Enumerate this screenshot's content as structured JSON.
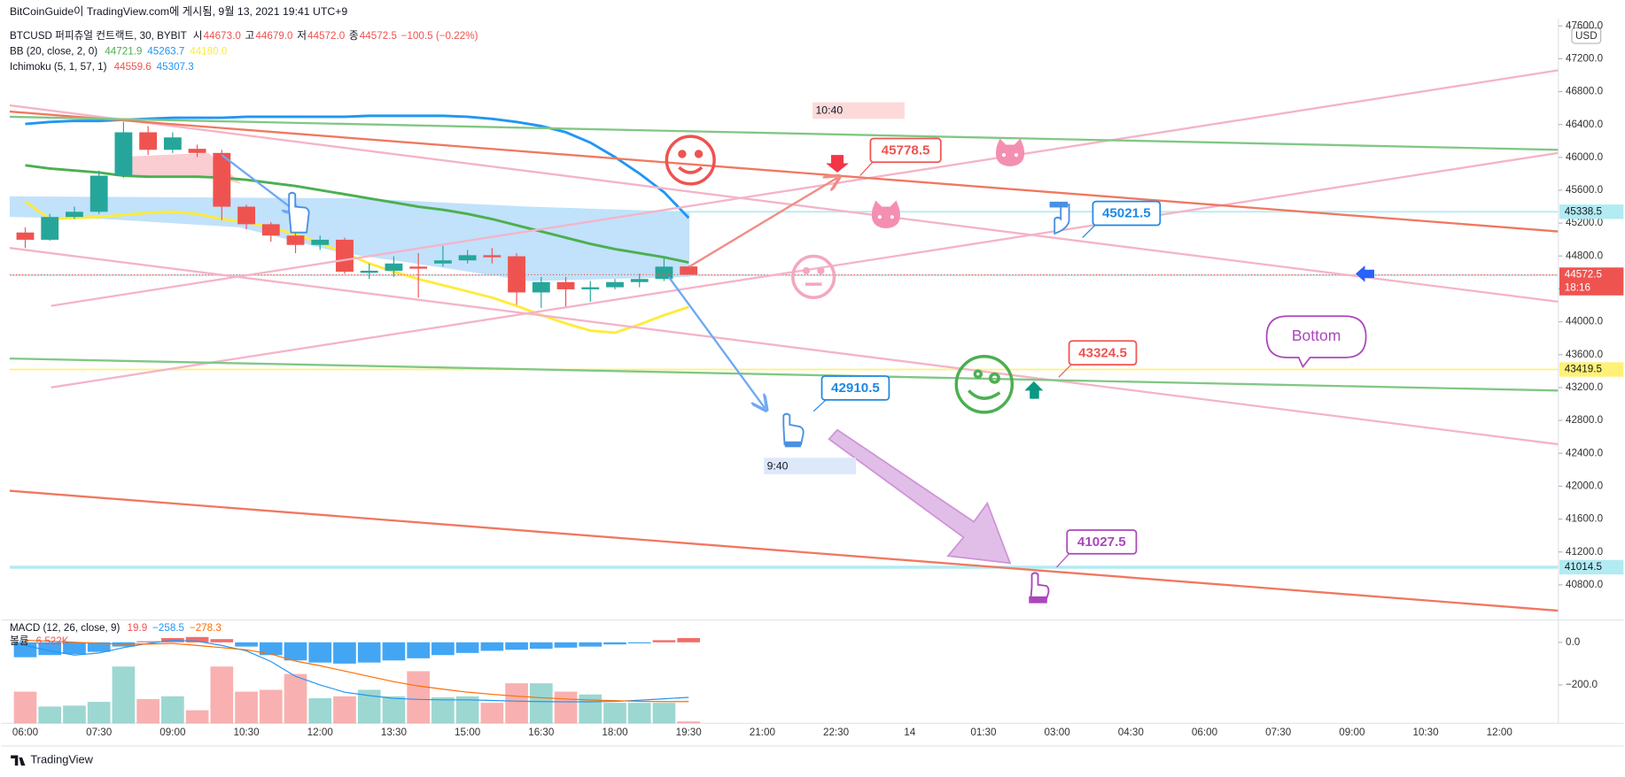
{
  "chart_data": {
    "type": "candlestick",
    "header": "BitCoinGuide이 TradingView.com에 게시됨, 9월 13, 2021 19:41 UTC+9",
    "legend": {
      "symbol": "BTCUSD 퍼피츄얼 컨트랙트, 30, BYBIT",
      "items": [
        [
          "시",
          "44673.0"
        ],
        [
          "고",
          "44679.0"
        ],
        [
          "저",
          "44572.0"
        ],
        [
          "종",
          "44572.5"
        ]
      ],
      "change": "−100.5 (−0.22%)",
      "color": "#ef5350"
    },
    "currency": "USD",
    "categories": [
      "06:00",
      "06:30",
      "07:00",
      "07:30",
      "08:00",
      "08:30",
      "09:00",
      "09:30",
      "10:00",
      "10:30",
      "11:00",
      "11:30",
      "12:00",
      "12:30",
      "13:00",
      "13:30",
      "14:00",
      "14:30",
      "15:00",
      "15:30",
      "16:00",
      "16:30",
      "17:00",
      "17:30",
      "18:00",
      "18:30",
      "19:00",
      "19:30"
    ],
    "open": [
      45086,
      44998,
      45275,
      45338,
      45777,
      46305,
      46092,
      46104,
      46054,
      45400,
      45187,
      45049,
      44935,
      44998,
      44596,
      44621,
      44671,
      44709,
      44747,
      44810,
      44797,
      44357,
      44483,
      44395,
      44420,
      44483,
      44521,
      44673
    ],
    "high": [
      45149,
      45312,
      45400,
      45840,
      46431,
      46381,
      46305,
      46155,
      46092,
      45425,
      45212,
      45149,
      45049,
      45023,
      44709,
      44797,
      44835,
      44923,
      44873,
      44898,
      44835,
      44546,
      44546,
      44496,
      44521,
      44584,
      44772,
      44679
    ],
    "low": [
      44898,
      44986,
      45250,
      45312,
      45752,
      46029,
      46054,
      46004,
      45237,
      45124,
      44973,
      44835,
      44873,
      44584,
      44521,
      44546,
      44294,
      44671,
      44709,
      44709,
      44206,
      44169,
      44169,
      44244,
      44395,
      44420,
      44496,
      44572
    ],
    "close": [
      44998,
      45275,
      45338,
      45777,
      46305,
      46092,
      46243,
      46054,
      45400,
      45187,
      45049,
      44935,
      44998,
      44609,
      44621,
      44709,
      44646,
      44747,
      44810,
      44785,
      44357,
      44483,
      44395,
      44420,
      44483,
      44521,
      44671,
      44572.5
    ],
    "up_color": "#26a69a",
    "down_color": "#ef5350",
    "ylim": [
      40373,
      47663
    ],
    "yticks": [
      {
        "value": 40800,
        "label": "40800.0"
      },
      {
        "value": 41200,
        "label": "41200.0"
      },
      {
        "value": 41600,
        "label": "41600.0"
      },
      {
        "value": 42000,
        "label": "42000.0"
      },
      {
        "value": 42400,
        "label": "42400.0"
      },
      {
        "value": 42800,
        "label": "42800.0"
      },
      {
        "value": 43200,
        "label": "43200.0"
      },
      {
        "value": 43600,
        "label": "43600.0"
      },
      {
        "value": 44000,
        "label": "44000.0"
      },
      {
        "value": 44400,
        "label": "44400.0"
      },
      {
        "value": 44800,
        "label": "44800.0"
      },
      {
        "value": 45200,
        "label": "45200.0"
      },
      {
        "value": 45600,
        "label": "45600.0"
      },
      {
        "value": 46000,
        "label": "46000.0"
      },
      {
        "value": 46400,
        "label": "46400.0"
      },
      {
        "value": 46800,
        "label": "46800.0"
      },
      {
        "value": 47200,
        "label": "47200.0"
      },
      {
        "value": 47600,
        "label": "47600.0"
      }
    ],
    "grid": false,
    "xticks": [
      "06:00",
      "07:30",
      "09:00",
      "10:30",
      "12:00",
      "13:30",
      "15:00",
      "16:30",
      "18:00",
      "19:30",
      "21:00",
      "22:30",
      "14",
      "01:30",
      "03:00",
      "04:30",
      "06:00",
      "07:30",
      "09:00",
      "10:30",
      "12:00"
    ],
    "bb": {
      "label": "BB (20, close, 2, 0)",
      "series": [
        {
          "color": "#4caf50",
          "legend_value": "44721.9",
          "values": [
            45903,
            45865,
            45840,
            45815,
            45777,
            45765,
            45765,
            45765,
            45752,
            45727,
            45690,
            45652,
            45602,
            45551,
            45501,
            45451,
            45400,
            45363,
            45312,
            45250,
            45174,
            45099,
            45023,
            44948,
            44885,
            44835,
            44785,
            44721.9
          ]
        },
        {
          "color": "#2196f3",
          "legend_value": "45263.7",
          "values": [
            46406,
            46431,
            46444,
            46444,
            46456,
            46469,
            46481,
            46481,
            46481,
            46494,
            46494,
            46494,
            46494,
            46494,
            46506,
            46506,
            46506,
            46506,
            46494,
            46469,
            46431,
            46381,
            46305,
            46180,
            46004,
            45803,
            45576,
            45263.7
          ]
        },
        {
          "color": "#ffeb3b",
          "legend_value": "44180.0",
          "values": [
            45463,
            45250,
            45262,
            45275,
            45300,
            45325,
            45338,
            45312,
            45250,
            45212,
            45149,
            45061,
            44961,
            44835,
            44709,
            44609,
            44521,
            44445,
            44370,
            44294,
            44194,
            44081,
            43980,
            43892,
            43867,
            43968,
            44081,
            44180.0
          ]
        }
      ]
    },
    "ichimoku": {
      "label": "Ichimoku (5, 1, 57, 1)",
      "values": [
        {
          "text": "44559.6",
          "color": "#ef5350"
        },
        {
          "text": "45307.3",
          "color": "#2196f3"
        }
      ]
    },
    "price_lines": [
      {
        "value": 45338.5,
        "color": "#b2ebf2",
        "text_color": "#131722"
      },
      {
        "value": 44564.5,
        "color": "#b2ebf2",
        "text_color": "#131722"
      },
      {
        "value": 43419.5,
        "color": "#fff176",
        "text_color": "#131722"
      },
      {
        "value": 41014.5,
        "color": "#b2ebf2",
        "text_color": "#131722"
      }
    ],
    "last_price": {
      "value": 44572.5,
      "countdown": "18:16",
      "color": "#ef5350"
    },
    "annotations": [
      "10:40",
      "45778.5",
      "45021.5",
      "43324.5",
      "42910.5",
      "9:40",
      "41027.5",
      "Bottom"
    ],
    "macd": {
      "label": "MACD (12, 26, close, 9)",
      "legend_values": [
        {
          "text": "19.9",
          "color": "#ef5350"
        },
        {
          "text": "−258.5",
          "color": "#2196f3"
        },
        {
          "text": "−278.3",
          "color": "#ff6d00"
        }
      ],
      "ylim": [
        -380,
        105
      ],
      "yticks": [
        {
          "value": 0,
          "label": "0.0"
        },
        {
          "value": -200,
          "label": "−200.0"
        }
      ],
      "hist": [
        -70,
        -60,
        -55,
        -45,
        -20,
        5,
        20,
        25,
        15,
        -20,
        -60,
        -85,
        -95,
        -100,
        -95,
        -85,
        -75,
        -60,
        -50,
        -40,
        -35,
        -30,
        -25,
        -20,
        -10,
        -5,
        10,
        19.9
      ],
      "macd": [
        -15,
        -40,
        -60,
        -50,
        -25,
        -5,
        10,
        5,
        -15,
        -40,
        -90,
        -160,
        -200,
        -234,
        -250,
        -263,
        -268,
        -270,
        -270,
        -273,
        -276,
        -278,
        -279,
        -279,
        -277,
        -272,
        -265,
        -258.5
      ],
      "signal": [
        10,
        5,
        0,
        -5,
        -8,
        -8,
        -5,
        -15,
        -25,
        -35,
        -55,
        -88,
        -110,
        -135,
        -160,
        -185,
        -205,
        -220,
        -234,
        -244,
        -253,
        -260,
        -266,
        -271,
        -274,
        -277,
        -278,
        -278.3
      ],
      "pos_color": "#ef5350",
      "neg_color": "#2196f3",
      "macd_color": "#2196f3",
      "signal_color": "#ff6d00"
    },
    "volume": {
      "label": "볼륨",
      "legend_value": "6.522K",
      "ylim": [
        0,
        10
      ],
      "values": [
        3.4,
        1.8,
        1.9,
        2.3,
        6.1,
        2.6,
        2.9,
        1.4,
        6.1,
        3.4,
        3.6,
        5.3,
        2.7,
        2.9,
        3.6,
        2.9,
        5.6,
        2.8,
        2.9,
        2.2,
        4.3,
        4.3,
        3.4,
        3.1,
        2.2,
        2.2,
        2.2,
        0.2
      ]
    },
    "footer": "TradingView"
  }
}
